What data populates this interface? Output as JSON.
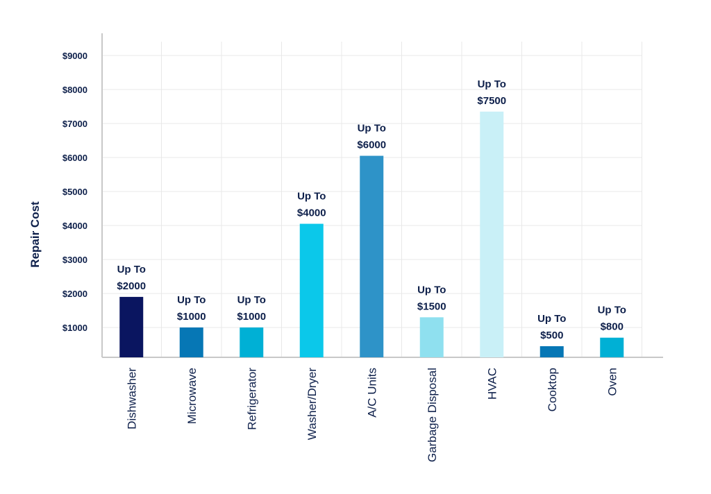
{
  "chart_data": {
    "type": "bar",
    "title": "",
    "xlabel": "",
    "ylabel": "Repair Cost",
    "ylim": [
      0,
      9000
    ],
    "yticks": [
      1000,
      2000,
      3000,
      4000,
      5000,
      6000,
      7000,
      8000,
      9000
    ],
    "ytick_labels": [
      "$1000",
      "$2000",
      "$3000",
      "$4000",
      "$5000",
      "$6000",
      "$7000",
      "$8000",
      "$9000"
    ],
    "grid": true,
    "legend": "none",
    "categories": [
      "Dishwasher",
      "Microwave",
      "Refrigerator",
      "Washer/Dryer",
      "A/C Units",
      "Garbage Disposal",
      "HVAC",
      "Cooktop",
      "Oven"
    ],
    "values": [
      2000,
      1000,
      1000,
      4000,
      6000,
      1500,
      7500,
      500,
      800
    ],
    "bar_values": [
      1900,
      1000,
      1000,
      4050,
      6050,
      1300,
      7350,
      450,
      700
    ],
    "data_labels": [
      [
        "Up To",
        "$2000"
      ],
      [
        "Up To",
        "$1000"
      ],
      [
        "Up To",
        "$1000"
      ],
      [
        "Up To",
        "$4000"
      ],
      [
        "Up To",
        "$6000"
      ],
      [
        "Up To",
        "$1500"
      ],
      [
        "Up To",
        "$7500"
      ],
      [
        "Up To",
        "$500"
      ],
      [
        "Up To",
        "$800"
      ]
    ],
    "colors": [
      "#0a1560",
      "#0677b5",
      "#00b0d5",
      "#0bc8ea",
      "#2e93c8",
      "#8fe0ef",
      "#c9f0f7",
      "#0677b5",
      "#00b0d5"
    ],
    "grid_color": "#e8e8e8",
    "axis_color": "#c8c8c8",
    "text_color": "#0d1f4a"
  }
}
